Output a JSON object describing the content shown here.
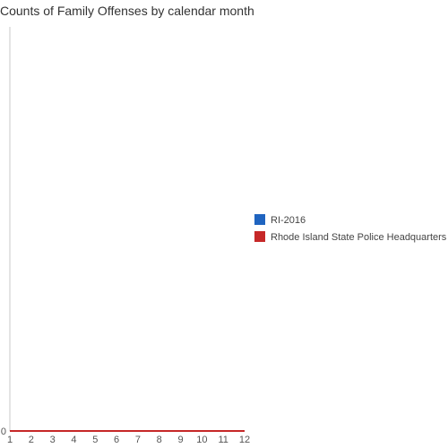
{
  "chart_data": {
    "type": "line",
    "title": "Counts of Family Offenses by calendar month",
    "xlabel": "",
    "ylabel": "",
    "x": [
      1,
      2,
      3,
      4,
      5,
      6,
      7,
      8,
      9,
      10,
      11,
      12
    ],
    "x_tick_labels": [
      "1",
      "2",
      "3",
      "4",
      "5",
      "6",
      "7",
      "8",
      "9",
      "10",
      "11",
      "12"
    ],
    "y_tick_labels": [
      "0"
    ],
    "ylim": [
      0,
      1
    ],
    "xlim": [
      1,
      12
    ],
    "legend_position": "right",
    "series": [
      {
        "name": "RI-2016",
        "color": "#1f64c0",
        "values": [
          0,
          0,
          0,
          0,
          0,
          0,
          0,
          0,
          0,
          0,
          0,
          0
        ]
      },
      {
        "name": "Rhode Island State Police Headquarters",
        "color": "#c62828",
        "values": [
          0,
          0,
          0,
          0,
          0,
          0,
          0,
          0,
          0,
          0,
          0,
          0
        ]
      }
    ]
  }
}
